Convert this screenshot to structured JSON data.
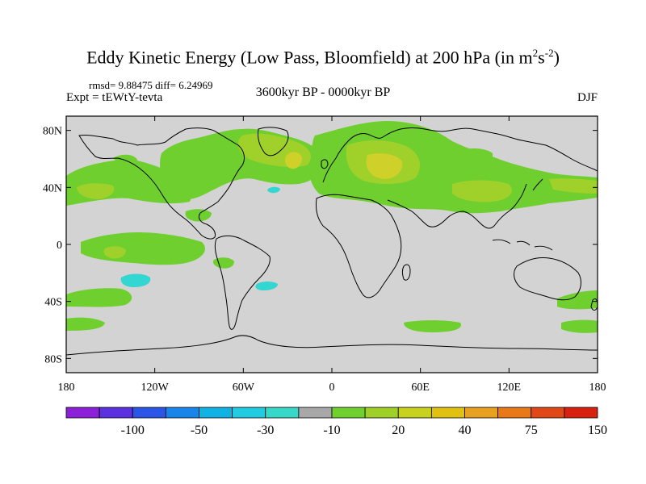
{
  "title": {
    "main": "Eddy Kinetic Energy (Low Pass, Bloomfield) at 200 hPa (in m",
    "sup1": "2",
    "mid": "s",
    "sup2": "-2",
    "end": ")"
  },
  "stats": {
    "text": "rmsd= 9.88475  diff= 6.24969"
  },
  "expt": {
    "text": "Expt = tEWtY-tevta"
  },
  "period": {
    "text": "3600kyr BP - 0000kyr BP"
  },
  "season": {
    "text": "DJF"
  },
  "colors": {
    "land_ocean_gray": "#d3d3d3",
    "green_20": "#6ecf2e",
    "green_30": "#a0d12a",
    "yellow_40": "#cfd02a",
    "cyan_neg": "#33d6d0",
    "coast": "#000000"
  },
  "chart_data": {
    "type": "heatmap",
    "projection": "cylindrical equidistant (global map)",
    "variable": "Eddy Kinetic Energy difference at 200 hPa",
    "units": "m^2 s^-2",
    "x_ticks": [
      {
        "value": -180,
        "label": "180"
      },
      {
        "value": -120,
        "label": "120W"
      },
      {
        "value": -60,
        "label": "60W"
      },
      {
        "value": 0,
        "label": "0"
      },
      {
        "value": 60,
        "label": "60E"
      },
      {
        "value": 120,
        "label": "120E"
      },
      {
        "value": 180,
        "label": "180"
      }
    ],
    "y_ticks": [
      {
        "value": 80,
        "label": "80N"
      },
      {
        "value": 40,
        "label": "40N"
      },
      {
        "value": 0,
        "label": "0"
      },
      {
        "value": -40,
        "label": "40S"
      },
      {
        "value": -80,
        "label": "80S"
      }
    ],
    "xlim": [
      -180,
      180
    ],
    "ylim": [
      -90,
      90
    ],
    "colorbar": {
      "colors": [
        "#8b20d8",
        "#5a30e0",
        "#2b55e6",
        "#1a85e8",
        "#10b2e4",
        "#22cce0",
        "#38d8c8",
        "#a8a8a8",
        "#70d030",
        "#9fd028",
        "#c8d020",
        "#e0c010",
        "#e8a020",
        "#e87818",
        "#e04818",
        "#d82010"
      ],
      "labels": [
        "-100",
        "-50",
        "-30",
        "-10",
        "20",
        "40",
        "75",
        "150"
      ]
    },
    "regions": [
      {
        "name": "pacific-storm-track-south",
        "level": "green",
        "lon": [
          -180,
          -100
        ],
        "lat": [
          25,
          45
        ]
      },
      {
        "name": "pacific-core",
        "level": "yellow",
        "lon": [
          -170,
          -150
        ],
        "lat": [
          30,
          40
        ]
      },
      {
        "name": "north-america-atlantic-band",
        "level": "green",
        "lon": [
          -130,
          -20
        ],
        "lat": [
          30,
          70
        ]
      },
      {
        "name": "atlantic-northern-core",
        "level": "yellow",
        "lon": [
          -70,
          -45
        ],
        "lat": [
          60,
          72
        ]
      },
      {
        "name": "eurasia-band",
        "level": "green",
        "lon": [
          -10,
          180
        ],
        "lat": [
          25,
          75
        ]
      },
      {
        "name": "europe-core",
        "level": "yellow",
        "lon": [
          20,
          50
        ],
        "lat": [
          40,
          55
        ]
      },
      {
        "name": "pacific-east-asia-jet",
        "level": "green",
        "lon": [
          100,
          180
        ],
        "lat": [
          30,
          42
        ]
      },
      {
        "name": "tropical-pacific-south",
        "level": "green",
        "lon": [
          -155,
          -105
        ],
        "lat": [
          -20,
          10
        ]
      },
      {
        "name": "south-pacific-negative",
        "level": "cyan",
        "lon": [
          -155,
          -135
        ],
        "lat": [
          -25,
          -32
        ]
      },
      {
        "name": "south-atlantic-negative",
        "level": "cyan",
        "lon": [
          -45,
          -35
        ],
        "lat": [
          -30,
          -34
        ]
      },
      {
        "name": "north-atlantic-negative",
        "level": "cyan",
        "lon": [
          -42,
          -35
        ],
        "lat": [
          33,
          36
        ]
      },
      {
        "name": "southern-ocean-west",
        "level": "green",
        "lon": [
          -180,
          -130
        ],
        "lat": [
          -38,
          -48
        ]
      },
      {
        "name": "southern-ocean-indian",
        "level": "green",
        "lon": [
          50,
          90
        ],
        "lat": [
          -50,
          -56
        ]
      },
      {
        "name": "southern-ocean-pacific",
        "level": "green",
        "lon": [
          150,
          180
        ],
        "lat": [
          -50,
          -57
        ]
      },
      {
        "name": "tasman-sea",
        "level": "green",
        "lon": [
          150,
          180
        ],
        "lat": [
          -32,
          -45
        ]
      },
      {
        "name": "southern-ocean-far-west",
        "level": "green",
        "lon": [
          -180,
          -150
        ],
        "lat": [
          -50,
          -60
        ]
      }
    ]
  }
}
